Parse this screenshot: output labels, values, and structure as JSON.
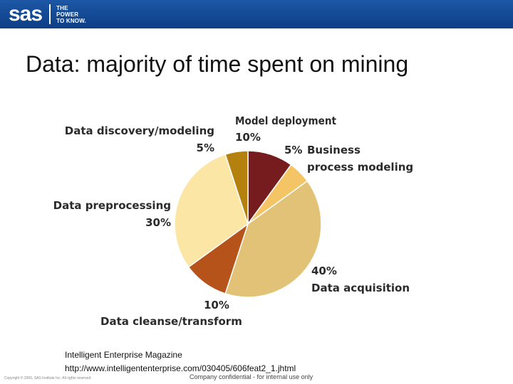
{
  "header": {
    "logo_text": "sas",
    "tagline": [
      "THE",
      "POWER",
      "TO KNOW."
    ],
    "banner_color": "#1a55a3"
  },
  "slide": {
    "title": "Data: majority of time spent on mining"
  },
  "chart_data": {
    "type": "pie",
    "title": "",
    "slices": [
      {
        "label": "Model deployment",
        "value": 10,
        "pct_label": "10%",
        "color": "#761b1e"
      },
      {
        "label": "Business process modeling",
        "value": 5,
        "pct_label": "5%",
        "color": "#f4c465"
      },
      {
        "label": "Data acquisition",
        "value": 40,
        "pct_label": "40%",
        "color": "#e2c277"
      },
      {
        "label": "Data cleanse/transform",
        "value": 10,
        "pct_label": "10%",
        "color": "#b6531a"
      },
      {
        "label": "Data preprocessing",
        "value": 30,
        "pct_label": "30%",
        "color": "#fbe6a6"
      },
      {
        "label": "Data discovery/modeling",
        "value": 5,
        "pct_label": "5%",
        "color": "#b4800e"
      }
    ]
  },
  "footer": {
    "source_line1": "Intelligent Enterprise Magazine",
    "source_line2": "http://www.intelligententerprise.com/030405/606feat2_1.jhtml",
    "copyright": "Copyright © 2006, SAS Institute Inc. All rights reserved.",
    "confidential": "Company confidential - for internal use only"
  }
}
